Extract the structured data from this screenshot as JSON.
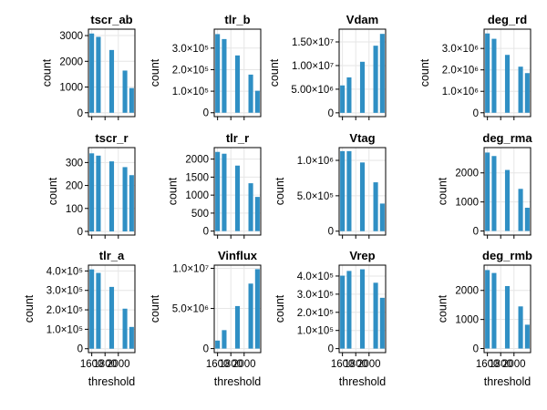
{
  "chart_data": [
    {
      "type": "bar",
      "title": "tscr_ab",
      "xlabel": "",
      "ylabel": "count",
      "x": [
        1600,
        1700,
        1800,
        1900,
        2000,
        2100,
        2200
      ],
      "values": [
        3080,
        2950,
        0,
        2440,
        0,
        1640,
        960
      ],
      "ylim": [
        -150,
        3250
      ],
      "yticks": [
        0,
        1000,
        2000,
        3000
      ],
      "yticklabels": [
        "0",
        "1000",
        "2000",
        "3000"
      ],
      "xticklabels": [],
      "color": "#2f8fc4"
    },
    {
      "type": "bar",
      "title": "tlr_b",
      "xlabel": "",
      "ylabel": "count",
      "x": [
        1600,
        1700,
        1800,
        1900,
        2000,
        2100,
        2200
      ],
      "values": [
        365000,
        342000,
        0,
        266000,
        0,
        177000,
        102000
      ],
      "ylim": [
        -18000,
        388000
      ],
      "yticks": [
        0,
        100000,
        200000,
        300000
      ],
      "yticklabels": [
        "0",
        "1.0×10⁵",
        "2.0×10⁵",
        "3.0×10⁵"
      ],
      "xticklabels": [],
      "color": "#2f8fc4"
    },
    {
      "type": "bar",
      "title": "Vdam",
      "xlabel": "",
      "ylabel": "count",
      "x": [
        1600,
        1700,
        1800,
        1900,
        2000,
        2100,
        2200
      ],
      "values": [
        5800000,
        7500000,
        0,
        10800000,
        0,
        14200000,
        16700000
      ],
      "ylim": [
        -800000,
        17700000
      ],
      "yticks": [
        0,
        5000000,
        10000000,
        15000000
      ],
      "yticklabels": [
        "0",
        "5.00×10⁶",
        "1.00×10⁷",
        "1.50×10⁷"
      ],
      "xticklabels": [],
      "color": "#2f8fc4"
    },
    {
      "type": "bar",
      "title": "deg_rd",
      "xlabel": "",
      "ylabel": "count",
      "x": [
        1600,
        1700,
        1800,
        1900,
        2000,
        2100,
        2200
      ],
      "values": [
        3700000,
        3450000,
        0,
        2700000,
        0,
        2150000,
        1850000
      ],
      "ylim": [
        -180000,
        3900000
      ],
      "yticks": [
        0,
        1000000,
        2000000,
        3000000
      ],
      "yticklabels": [
        "0",
        "1.0×10⁶",
        "2.0×10⁶",
        "3.0×10⁶"
      ],
      "xticklabels": [],
      "color": "#2f8fc4"
    },
    {
      "type": "bar",
      "title": "tscr_r",
      "xlabel": "",
      "ylabel": "count",
      "x": [
        1600,
        1700,
        1800,
        1900,
        2000,
        2100,
        2200
      ],
      "values": [
        340,
        330,
        0,
        305,
        0,
        280,
        245
      ],
      "ylim": [
        -16,
        365
      ],
      "yticks": [
        0,
        100,
        200,
        300
      ],
      "yticklabels": [
        "0",
        "100",
        "200",
        "300"
      ],
      "xticklabels": [],
      "color": "#2f8fc4"
    },
    {
      "type": "bar",
      "title": "tlr_r",
      "xlabel": "",
      "ylabel": "count",
      "x": [
        1600,
        1700,
        1800,
        1900,
        2000,
        2100,
        2200
      ],
      "values": [
        2200,
        2150,
        0,
        1820,
        0,
        1330,
        950
      ],
      "ylim": [
        -110,
        2320
      ],
      "yticks": [
        0,
        500,
        1000,
        1500,
        2000
      ],
      "yticklabels": [
        "0",
        "500",
        "1000",
        "1500",
        "2000"
      ],
      "xticklabels": [],
      "color": "#2f8fc4"
    },
    {
      "type": "bar",
      "title": "Vtag",
      "xlabel": "",
      "ylabel": "count",
      "x": [
        1600,
        1700,
        1800,
        1900,
        2000,
        2100,
        2200
      ],
      "values": [
        1130000,
        1130000,
        0,
        970000,
        0,
        690000,
        390000
      ],
      "ylim": [
        -55000,
        1180000
      ],
      "yticks": [
        0,
        500000,
        1000000
      ],
      "yticklabels": [
        "0",
        "5.0×10⁵",
        "1.0×10⁶"
      ],
      "xticklabels": [],
      "color": "#2f8fc4"
    },
    {
      "type": "bar",
      "title": "deg_rma",
      "xlabel": "",
      "ylabel": "count",
      "x": [
        1600,
        1700,
        1800,
        1900,
        2000,
        2100,
        2200
      ],
      "values": [
        2700,
        2580,
        0,
        2100,
        0,
        1450,
        800
      ],
      "ylim": [
        -140,
        2870
      ],
      "yticks": [
        0,
        1000,
        2000
      ],
      "yticklabels": [
        "0",
        "1000",
        "2000"
      ],
      "xticklabels": [],
      "color": "#2f8fc4"
    },
    {
      "type": "bar",
      "title": "tlr_a",
      "xlabel": "threshold",
      "ylabel": "count",
      "x": [
        1600,
        1700,
        1800,
        1900,
        2000,
        2100,
        2200
      ],
      "values": [
        408000,
        390000,
        0,
        318000,
        0,
        206000,
        112000
      ],
      "ylim": [
        -20000,
        430000
      ],
      "yticks": [
        0,
        100000,
        200000,
        300000,
        400000
      ],
      "yticklabels": [
        "0",
        "1.0×10⁵",
        "2.0×10⁵",
        "3.0×10⁵",
        "4.0×10⁵"
      ],
      "xticks": [
        1600,
        1800,
        2000
      ],
      "xticklabels": [
        "1600",
        "1800",
        "2000"
      ],
      "color": "#2f8fc4"
    },
    {
      "type": "bar",
      "title": "Vinflux",
      "xlabel": "threshold",
      "ylabel": "count",
      "x": [
        1600,
        1700,
        1800,
        1900,
        2000,
        2100,
        2200
      ],
      "values": [
        1000000,
        2300000,
        0,
        5300000,
        0,
        8100000,
        9900000
      ],
      "ylim": [
        -500000,
        10400000
      ],
      "yticks": [
        0,
        5000000,
        10000000
      ],
      "yticklabels": [
        "0",
        "5.0×10⁶",
        "1.0×10⁷"
      ],
      "xticks": [
        1600,
        1800,
        2000
      ],
      "xticklabels": [
        "1600",
        "1800",
        "2000"
      ],
      "color": "#2f8fc4"
    },
    {
      "type": "bar",
      "title": "Vrep",
      "xlabel": "threshold",
      "ylabel": "count",
      "x": [
        1600,
        1700,
        1800,
        1900,
        2000,
        2100,
        2200
      ],
      "values": [
        402000,
        428000,
        0,
        437000,
        0,
        363000,
        280000
      ],
      "ylim": [
        -22000,
        460000
      ],
      "yticks": [
        0,
        100000,
        200000,
        300000,
        400000
      ],
      "yticklabels": [
        "0",
        "1.0×10⁵",
        "2.0×10⁵",
        "3.0×10⁵",
        "4.0×10⁵"
      ],
      "xticks": [
        1600,
        1800,
        2000
      ],
      "xticklabels": [
        "1600",
        "1800",
        "2000"
      ],
      "color": "#2f8fc4"
    },
    {
      "type": "bar",
      "title": "deg_rmb",
      "xlabel": "threshold",
      "ylabel": "count",
      "x": [
        1600,
        1700,
        1800,
        1900,
        2000,
        2100,
        2200
      ],
      "values": [
        2700,
        2600,
        0,
        2150,
        0,
        1450,
        820
      ],
      "ylim": [
        -140,
        2870
      ],
      "yticks": [
        0,
        1000,
        2000
      ],
      "yticklabels": [
        "0",
        "1000",
        "2000"
      ],
      "xticks": [
        1600,
        1800,
        2000
      ],
      "xticklabels": [
        "1600",
        "1800",
        "2000"
      ],
      "color": "#2f8fc4"
    }
  ]
}
